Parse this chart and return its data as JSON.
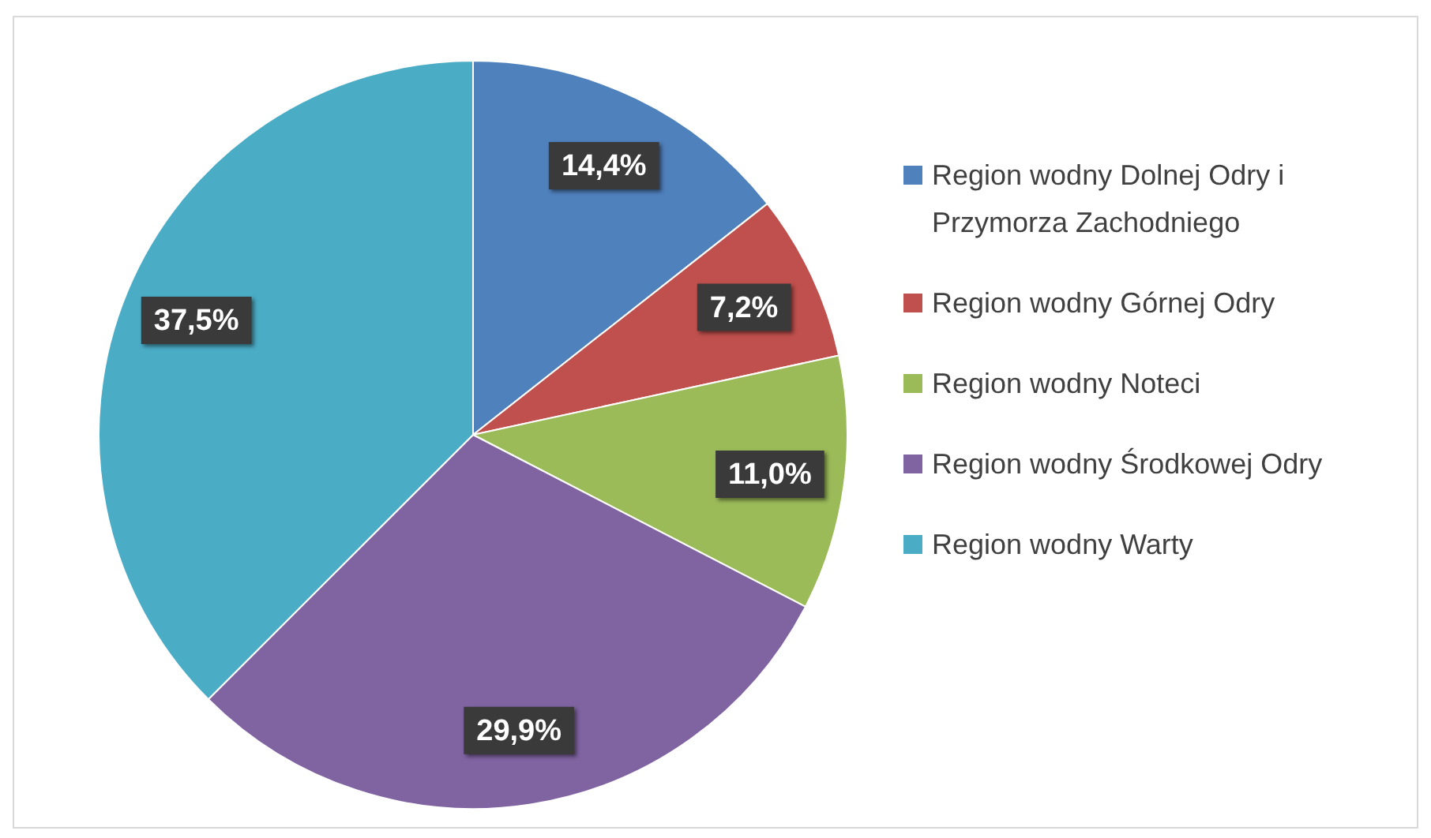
{
  "chart_data": {
    "type": "pie",
    "categories": [
      "Region wodny Dolnej Odry i Przymorza Zachodniego",
      "Region wodny Górnej Odry",
      "Region wodny Noteci",
      "Region wodny Środkowej Odry",
      "Region wodny Warty"
    ],
    "values": [
      14.4,
      7.2,
      11.0,
      29.9,
      37.5
    ],
    "colors": [
      "#4f81bd",
      "#c0504d",
      "#9bbb59",
      "#8064a2",
      "#4bacc6"
    ],
    "value_labels": [
      "14,4%",
      "7,2%",
      "11,0%",
      "29,9%",
      "37,5%"
    ],
    "legend": "right"
  }
}
